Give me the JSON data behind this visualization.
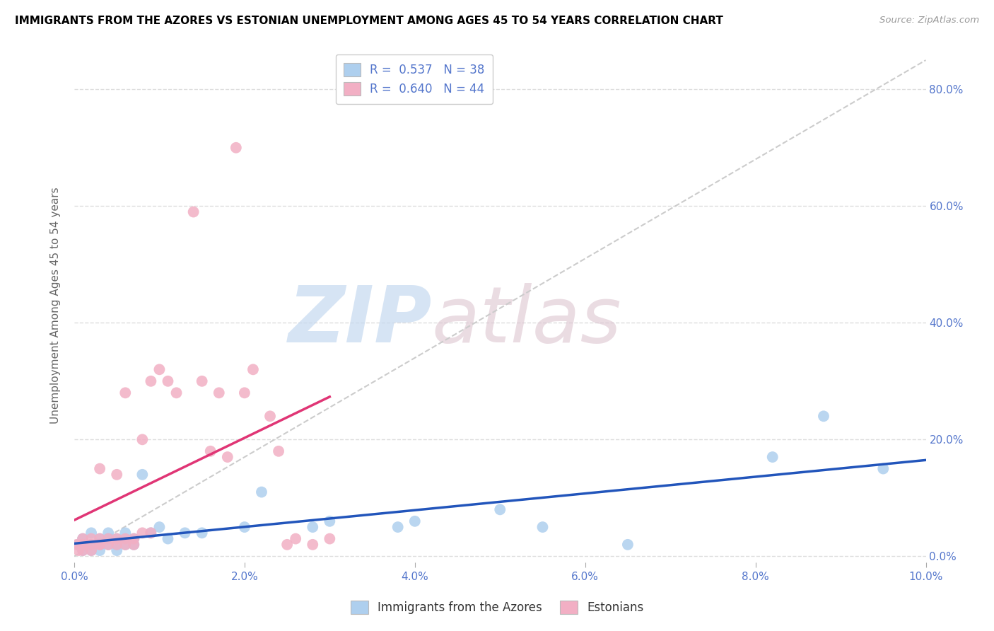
{
  "title": "IMMIGRANTS FROM THE AZORES VS ESTONIAN UNEMPLOYMENT AMONG AGES 45 TO 54 YEARS CORRELATION CHART",
  "source": "Source: ZipAtlas.com",
  "ylabel": "Unemployment Among Ages 45 to 54 years",
  "xlim": [
    0.0,
    0.1
  ],
  "ylim": [
    -0.01,
    0.87
  ],
  "xtick_vals": [
    0.0,
    0.02,
    0.04,
    0.06,
    0.08,
    0.1
  ],
  "ytick_vals": [
    0.0,
    0.2,
    0.4,
    0.6,
    0.8
  ],
  "legend_R_blue": "0.537",
  "legend_N_blue": "38",
  "legend_R_pink": "0.640",
  "legend_N_pink": "44",
  "blue_scatter_color": "#aecfee",
  "pink_scatter_color": "#f2afc4",
  "blue_line_color": "#2255bb",
  "pink_line_color": "#e03575",
  "diag_color": "#cccccc",
  "grid_color": "#dddddd",
  "tick_color": "#5577cc",
  "ylabel_color": "#666666",
  "watermark_zip_color": "#c5d9f0",
  "watermark_atlas_color": "#ddc5d0",
  "azores_x": [
    0.0005,
    0.001,
    0.001,
    0.001,
    0.002,
    0.002,
    0.002,
    0.003,
    0.003,
    0.003,
    0.004,
    0.004,
    0.004,
    0.005,
    0.005,
    0.005,
    0.006,
    0.006,
    0.007,
    0.007,
    0.008,
    0.009,
    0.01,
    0.011,
    0.013,
    0.015,
    0.02,
    0.022,
    0.028,
    0.03,
    0.038,
    0.04,
    0.05,
    0.055,
    0.065,
    0.082,
    0.088,
    0.095
  ],
  "azores_y": [
    0.02,
    0.01,
    0.03,
    0.02,
    0.02,
    0.01,
    0.04,
    0.02,
    0.03,
    0.01,
    0.03,
    0.02,
    0.04,
    0.02,
    0.01,
    0.03,
    0.04,
    0.02,
    0.02,
    0.03,
    0.14,
    0.04,
    0.05,
    0.03,
    0.04,
    0.04,
    0.05,
    0.11,
    0.05,
    0.06,
    0.05,
    0.06,
    0.08,
    0.05,
    0.02,
    0.17,
    0.24,
    0.15
  ],
  "estonians_x": [
    0.0003,
    0.0005,
    0.001,
    0.001,
    0.001,
    0.001,
    0.002,
    0.002,
    0.002,
    0.003,
    0.003,
    0.003,
    0.003,
    0.004,
    0.004,
    0.005,
    0.005,
    0.005,
    0.006,
    0.006,
    0.006,
    0.007,
    0.007,
    0.008,
    0.008,
    0.009,
    0.009,
    0.01,
    0.011,
    0.012,
    0.014,
    0.015,
    0.016,
    0.017,
    0.018,
    0.019,
    0.02,
    0.021,
    0.023,
    0.024,
    0.025,
    0.026,
    0.028,
    0.03
  ],
  "estonians_y": [
    0.02,
    0.01,
    0.03,
    0.02,
    0.01,
    0.02,
    0.03,
    0.02,
    0.01,
    0.02,
    0.15,
    0.03,
    0.02,
    0.03,
    0.02,
    0.14,
    0.03,
    0.02,
    0.03,
    0.02,
    0.28,
    0.03,
    0.02,
    0.2,
    0.04,
    0.3,
    0.04,
    0.32,
    0.3,
    0.28,
    0.59,
    0.3,
    0.18,
    0.28,
    0.17,
    0.7,
    0.28,
    0.32,
    0.24,
    0.18,
    0.02,
    0.03,
    0.02,
    0.03
  ]
}
